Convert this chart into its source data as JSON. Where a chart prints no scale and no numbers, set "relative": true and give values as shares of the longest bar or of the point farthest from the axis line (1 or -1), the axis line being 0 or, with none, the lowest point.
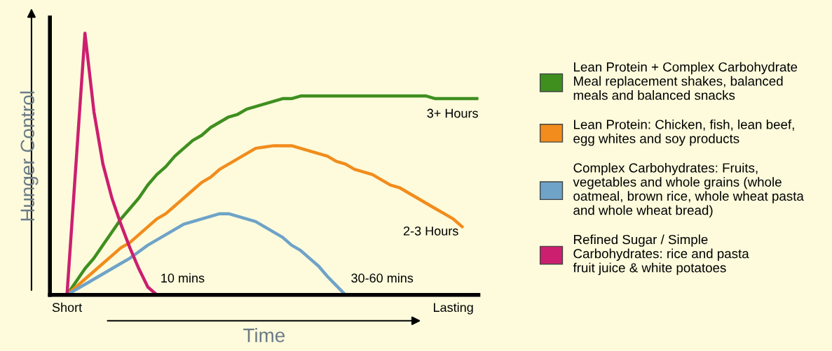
{
  "chart_data": {
    "type": "line",
    "relative": true,
    "xlabel": "Time",
    "ylabel": "Hunger Control",
    "categories": [
      "Short",
      null,
      null,
      null,
      null,
      null,
      null,
      null,
      null,
      null,
      null,
      null,
      null,
      null,
      null,
      null,
      null,
      null,
      null,
      null,
      null,
      null,
      null,
      null,
      null,
      null,
      null,
      null,
      null,
      null,
      null,
      null,
      null,
      null,
      null,
      null,
      null,
      null,
      null,
      null,
      null,
      null,
      null,
      "Lasting",
      null,
      null,
      null
    ],
    "tick_labels": "x",
    "grid": false,
    "legend": "right",
    "marker": "none",
    "line_style": "solid",
    "series": [
      {
        "name": "Lean Protein + Complex Carbohydrate\nMeal replacement shakes, balanced\nmeals and balanced snacks",
        "color": "#3f8f1f",
        "values": [
          0,
          0.05,
          0.1,
          0.14,
          0.19,
          0.24,
          0.29,
          0.33,
          0.37,
          0.42,
          0.46,
          0.49,
          0.53,
          0.56,
          0.59,
          0.61,
          0.64,
          0.66,
          0.68,
          0.69,
          0.71,
          0.72,
          0.73,
          0.74,
          0.75,
          0.75,
          0.76,
          0.76,
          0.76,
          0.76,
          0.76,
          0.76,
          0.76,
          0.76,
          0.76,
          0.76,
          0.76,
          0.76,
          0.76,
          0.76,
          0.76,
          0.75,
          0.75,
          0.75,
          0.75,
          0.75,
          0.75
        ]
      },
      {
        "name": "Lean Protein: Chicken, fish, lean beef,\negg whites and soy products",
        "color": "#f28c1c",
        "values": [
          0,
          0.03,
          0.06,
          0.09,
          0.12,
          0.15,
          0.18,
          0.2,
          0.23,
          0.26,
          0.29,
          0.31,
          0.34,
          0.37,
          0.4,
          0.43,
          0.45,
          0.48,
          0.5,
          0.52,
          0.54,
          0.56,
          0.565,
          0.57,
          0.57,
          0.57,
          0.56,
          0.55,
          0.54,
          0.53,
          0.51,
          0.5,
          0.48,
          0.47,
          0.46,
          0.44,
          0.42,
          0.41,
          0.39,
          0.37,
          0.35,
          0.33,
          0.31,
          0.29,
          0.26,
          null,
          null
        ]
      },
      {
        "name": "Complex Carbohydrates: Fruits,\nvegetables and whole grains (whole\noatmeal, brown rice, whole wheat pasta\nand whole wheat bread)",
        "color": "#6fa3c8",
        "values": [
          0,
          0.02,
          0.04,
          0.06,
          0.08,
          0.1,
          0.12,
          0.14,
          0.165,
          0.19,
          0.21,
          0.23,
          0.25,
          0.27,
          0.28,
          0.29,
          0.3,
          0.31,
          0.31,
          0.3,
          0.29,
          0.28,
          0.26,
          0.24,
          0.22,
          0.19,
          0.17,
          0.14,
          0.11,
          0.07,
          0.035,
          0,
          null,
          null,
          null,
          null,
          null,
          null,
          null,
          null,
          null,
          null,
          null,
          null,
          null,
          null,
          null
        ]
      },
      {
        "name": "Refined Sugar / Simple\nCarbohydrates: rice and pasta\nfruit juice & white potatoes",
        "color": "#cc1f6f",
        "values": [
          0,
          0.5,
          1,
          0.7,
          0.5,
          0.37,
          0.27,
          0.18,
          0.1,
          0.03,
          0,
          null,
          null,
          null,
          null,
          null,
          null,
          null,
          null,
          null,
          null,
          null,
          null,
          null,
          null,
          null,
          null,
          null,
          null,
          null,
          null,
          null,
          null,
          null,
          null,
          null,
          null,
          null,
          null,
          null,
          null,
          null,
          null,
          null,
          null,
          null,
          null
        ]
      }
    ],
    "annotations": [
      "3+ Hours",
      "2-3 Hours",
      "30-60 mins",
      "10 mins"
    ]
  }
}
